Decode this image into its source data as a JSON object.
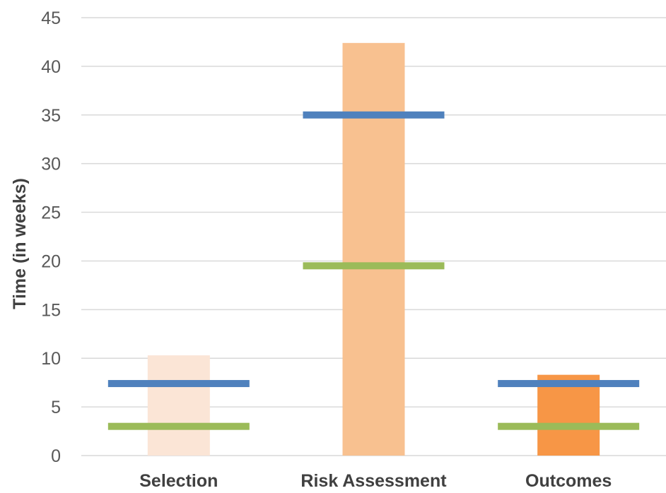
{
  "chart_data": {
    "type": "bar",
    "title": "",
    "xlabel": "",
    "ylabel": "Time (in weeks)",
    "ylim": [
      0,
      45
    ],
    "yticks": [
      0,
      5,
      10,
      15,
      20,
      25,
      30,
      35,
      40,
      45
    ],
    "grid": true,
    "categories": [
      "Selection",
      "Risk Assessment",
      "Outcomes"
    ],
    "bars": {
      "values": [
        10.3,
        42.4,
        8.3
      ],
      "colors": [
        "#fbe5d6",
        "#f8c190",
        "#f79646"
      ]
    },
    "markers": [
      {
        "values": [
          7.4,
          35.0,
          7.4
        ],
        "color": "#4f81bd"
      },
      {
        "values": [
          3.0,
          19.5,
          3.0
        ],
        "color": "#9bbb59"
      }
    ]
  }
}
